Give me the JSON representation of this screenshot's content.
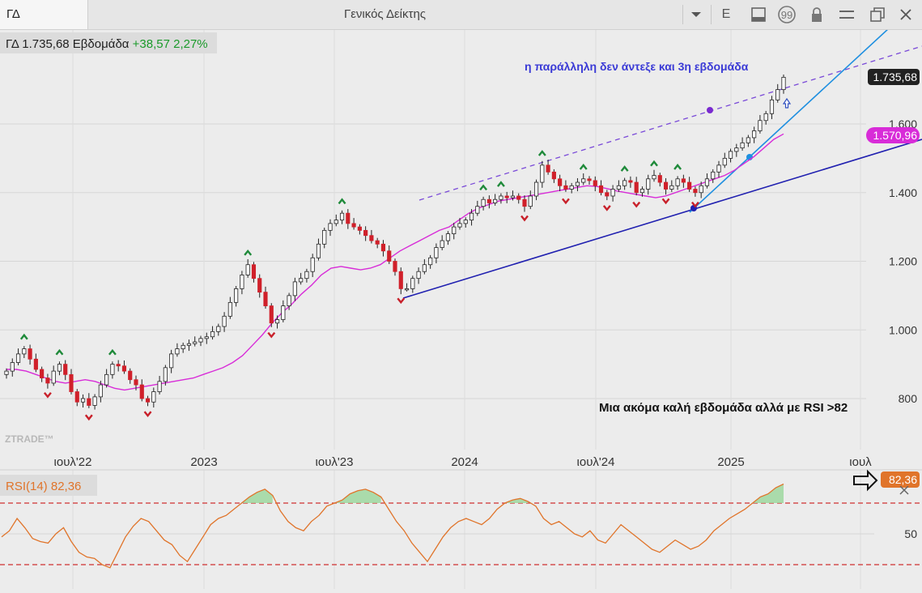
{
  "toolbar": {
    "symbol": "ΓΔ",
    "title": "Γενικός Δείκτης",
    "mode_label": "E"
  },
  "header": {
    "label": "ΓΔ 1.735,68 Εβδομάδα",
    "change": "+38,57 2,27%"
  },
  "colors": {
    "up_candle": "#ffffff",
    "down_candle": "#d0202a",
    "ma_line": "#d82cd8",
    "channel": "#2020b0",
    "trend": "#1e8fe0",
    "rsi_line": "#e0742a",
    "rsi_fill": "#9fd8a0",
    "rsi_limit": "#d03030"
  },
  "chart_data": [
    {
      "type": "candlestick",
      "title": "ΓΔ",
      "interval": "Εβδομάδα",
      "last_value": "1.735,68",
      "ma_value": "1.570,96",
      "y_ticks": [
        "1.600",
        "1.400",
        "1.200",
        "1.000",
        "800"
      ],
      "x_ticks": [
        "ιουλ'22",
        "2023",
        "ιουλ'23",
        "2024",
        "ιουλ'24",
        "2025",
        "ιουλ"
      ],
      "ylim": [
        700,
        1870
      ],
      "series": [
        {
          "name": "ΓΔ",
          "close": [
            880,
            905,
            930,
            945,
            915,
            885,
            860,
            845,
            880,
            900,
            870,
            820,
            790,
            800,
            780,
            805,
            840,
            870,
            900,
            895,
            880,
            855,
            840,
            800,
            790,
            820,
            850,
            890,
            930,
            945,
            955,
            960,
            965,
            975,
            980,
            995,
            1010,
            1040,
            1080,
            1120,
            1160,
            1190,
            1150,
            1110,
            1070,
            1020,
            1030,
            1070,
            1100,
            1140,
            1150,
            1170,
            1210,
            1250,
            1290,
            1310,
            1320,
            1340,
            1310,
            1300,
            1290,
            1275,
            1260,
            1250,
            1230,
            1200,
            1170,
            1120,
            1120,
            1150,
            1170,
            1190,
            1210,
            1240,
            1260,
            1280,
            1300,
            1310,
            1320,
            1340,
            1360,
            1380,
            1370,
            1380,
            1390,
            1385,
            1390,
            1380,
            1360,
            1390,
            1430,
            1480,
            1460,
            1440,
            1420,
            1410,
            1420,
            1430,
            1440,
            1435,
            1420,
            1400,
            1390,
            1410,
            1420,
            1435,
            1430,
            1400,
            1410,
            1440,
            1450,
            1430,
            1410,
            1420,
            1440,
            1430,
            1410,
            1400,
            1420,
            1440,
            1460,
            1480,
            1500,
            1520,
            1530,
            1545,
            1560,
            1580,
            1610,
            1630,
            1670,
            1700,
            1736
          ]
        },
        {
          "name": "MA",
          "values": [
            885,
            885,
            880,
            870,
            860,
            850,
            845,
            850,
            855,
            850,
            840,
            830,
            825,
            830,
            835,
            840,
            845,
            850,
            855,
            860,
            870,
            880,
            890,
            905,
            925,
            955,
            985,
            1020,
            1050,
            1075,
            1105,
            1130,
            1160,
            1180,
            1185,
            1180,
            1175,
            1180,
            1190,
            1210,
            1230,
            1245,
            1260,
            1275,
            1290,
            1300,
            1320,
            1340,
            1355,
            1365,
            1375,
            1380,
            1385,
            1390,
            1395,
            1400,
            1405,
            1410,
            1415,
            1420,
            1418,
            1412,
            1405,
            1400,
            1395,
            1390,
            1385,
            1390,
            1400,
            1410,
            1420,
            1430,
            1440,
            1450,
            1465,
            1485,
            1505,
            1530,
            1555,
            1571
          ]
        }
      ],
      "annotations": [
        "η παράλληλη δεν άντεξε και 3η εβδομάδα",
        "Μια ακόμα καλή εβδομάδα αλλά με RSI >82"
      ]
    },
    {
      "type": "line",
      "title": "RSI(14)",
      "last_value": "82,36",
      "y_ticks": [
        "50"
      ],
      "limits": [
        70,
        30
      ],
      "ylim": [
        20,
        95
      ],
      "series": [
        {
          "name": "RSI(14)",
          "values": [
            48,
            52,
            60,
            54,
            47,
            45,
            44,
            50,
            54,
            45,
            38,
            35,
            34,
            30,
            28,
            38,
            48,
            55,
            60,
            58,
            52,
            46,
            43,
            36,
            32,
            40,
            48,
            56,
            60,
            62,
            66,
            70,
            74,
            77,
            79,
            75,
            65,
            58,
            54,
            52,
            58,
            62,
            68,
            70,
            72,
            76,
            78,
            79,
            77,
            74,
            66,
            58,
            52,
            44,
            38,
            32,
            40,
            48,
            54,
            58,
            60,
            58,
            56,
            60,
            66,
            70,
            72,
            73,
            71,
            68,
            60,
            56,
            58,
            54,
            50,
            48,
            52,
            46,
            44,
            50,
            56,
            52,
            48,
            44,
            40,
            38,
            42,
            46,
            43,
            40,
            42,
            46,
            52,
            56,
            60,
            63,
            66,
            70,
            74,
            76,
            80,
            82.36
          ]
        }
      ]
    }
  ]
}
